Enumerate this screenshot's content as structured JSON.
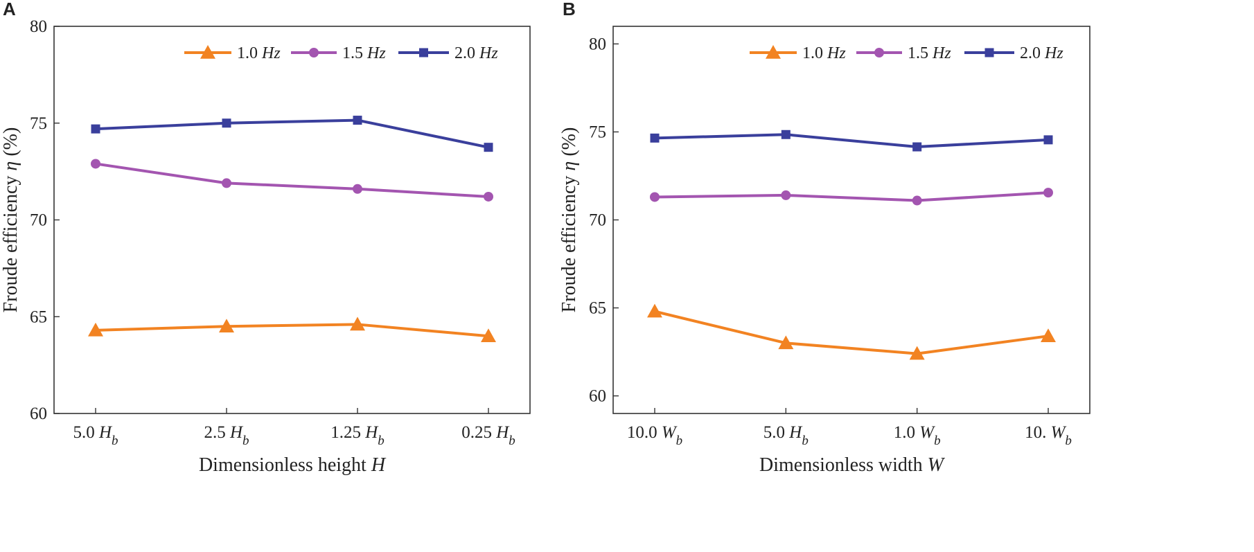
{
  "chart_data": [
    {
      "panel": "A",
      "type": "line",
      "xlabel": "Dimensionless height",
      "xlabel_var": "H",
      "ylabel": "Froude efficiency",
      "ylabel_var": "η",
      "ylabel_unit": "(%)",
      "ylim": [
        60,
        80
      ],
      "yticks": [
        60,
        65,
        70,
        75,
        80
      ],
      "categories": [
        {
          "num": "5.0",
          "var": "H",
          "sub": "b"
        },
        {
          "num": "2.5",
          "var": "H",
          "sub": "b"
        },
        {
          "num": "1.25",
          "var": "H",
          "sub": "b"
        },
        {
          "num": "0.25",
          "var": "H",
          "sub": "b"
        }
      ],
      "series": [
        {
          "name": "1.0",
          "unit": "Hz",
          "color": "#F28322",
          "marker": "triangle",
          "values": [
            64.3,
            64.5,
            64.6,
            64.0
          ]
        },
        {
          "name": "1.5",
          "unit": "Hz",
          "color": "#A355B0",
          "marker": "circle",
          "values": [
            72.9,
            71.9,
            71.6,
            71.2
          ]
        },
        {
          "name": "2.0",
          "unit": "Hz",
          "color": "#3A3F9C",
          "marker": "square",
          "values": [
            74.7,
            75.0,
            75.15,
            73.75
          ]
        }
      ],
      "legend_position": "top-right",
      "grid": false
    },
    {
      "panel": "B",
      "type": "line",
      "xlabel": "Dimensionless width",
      "xlabel_var": "W",
      "ylabel": "Froude efficiency",
      "ylabel_var": "η",
      "ylabel_unit": "(%)",
      "ylim": [
        59,
        81
      ],
      "yticks": [
        60,
        65,
        70,
        75,
        80
      ],
      "categories": [
        {
          "num": "10.0",
          "var": "W",
          "sub": "b"
        },
        {
          "num": "5.0",
          "var": "H",
          "sub": "b"
        },
        {
          "num": "1.0",
          "var": "W",
          "sub": "b"
        },
        {
          "num": "10.",
          "var": "W",
          "sub": "b"
        }
      ],
      "series": [
        {
          "name": "1.0",
          "unit": "Hz",
          "color": "#F28322",
          "marker": "triangle",
          "values": [
            64.8,
            63.0,
            62.4,
            63.4
          ]
        },
        {
          "name": "1.5",
          "unit": "Hz",
          "color": "#A355B0",
          "marker": "circle",
          "values": [
            71.3,
            71.4,
            71.1,
            71.55
          ]
        },
        {
          "name": "2.0",
          "unit": "Hz",
          "color": "#3A3F9C",
          "marker": "square",
          "values": [
            74.65,
            74.85,
            74.15,
            74.55
          ]
        }
      ],
      "legend_position": "top-right",
      "grid": false
    }
  ]
}
